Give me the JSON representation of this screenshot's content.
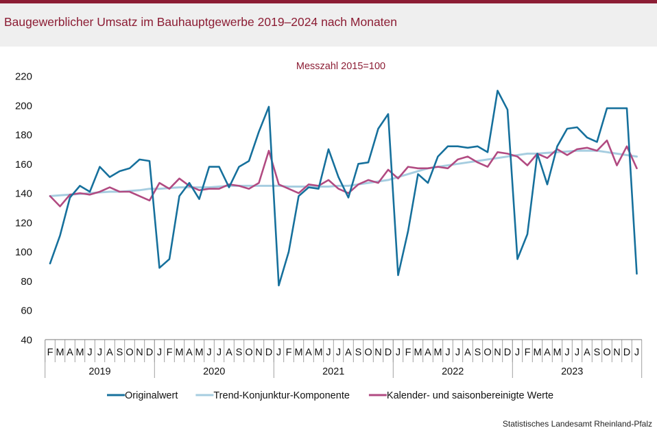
{
  "title": "Baugewerblicher Umsatz im Bauhauptgewerbe 2019–2024 nach Monaten",
  "source": "Statistisches Landesamt Rheinland-Pfalz",
  "colors": {
    "accent": "#8c1d34",
    "original": "#16709c",
    "trend": "#a6cde0",
    "seasonal": "#b14a81"
  },
  "chart_data": {
    "type": "line",
    "subtitle": "Messzahl 2015=100",
    "ylim": [
      40,
      220
    ],
    "yticks": [
      40,
      60,
      80,
      100,
      120,
      140,
      160,
      180,
      200,
      220
    ],
    "grid": false,
    "legend_position": "bottom",
    "x": [
      "F",
      "M",
      "A",
      "M",
      "J",
      "J",
      "A",
      "S",
      "O",
      "N",
      "D",
      "J",
      "F",
      "M",
      "A",
      "M",
      "J",
      "J",
      "A",
      "S",
      "O",
      "N",
      "D",
      "J",
      "F",
      "M",
      "A",
      "M",
      "J",
      "J",
      "A",
      "S",
      "O",
      "N",
      "D",
      "J",
      "F",
      "M",
      "A",
      "M",
      "J",
      "J",
      "A",
      "S",
      "O",
      "N",
      "D",
      "J",
      "F",
      "M",
      "A",
      "M",
      "J",
      "J",
      "A",
      "S",
      "O",
      "N",
      "D",
      "J"
    ],
    "years": [
      {
        "label": "2019",
        "start": 0,
        "end": 11
      },
      {
        "label": "2020",
        "start": 11,
        "end": 23
      },
      {
        "label": "2021",
        "start": 23,
        "end": 35
      },
      {
        "label": "2022",
        "start": 35,
        "end": 47
      },
      {
        "label": "2023",
        "start": 47,
        "end": 59
      }
    ],
    "series": [
      {
        "name": "Originalwert",
        "color": "#16709c",
        "values": [
          92,
          111,
          137,
          145,
          141,
          158,
          151,
          155,
          157,
          163,
          162,
          89,
          95,
          138,
          147,
          136,
          158,
          158,
          144,
          158,
          162,
          182,
          199,
          77,
          100,
          138,
          144,
          143,
          170,
          151,
          137,
          160,
          161,
          184,
          194,
          84,
          114,
          153,
          147,
          165,
          172,
          172,
          171,
          172,
          168,
          210,
          197,
          95,
          112,
          167,
          146,
          172,
          184,
          185,
          178,
          175,
          198,
          198,
          198,
          85
        ]
      },
      {
        "name": "Trend-Konjunktur-Komponente",
        "color": "#a6cde0",
        "values": [
          138,
          138.5,
          139,
          139.5,
          140,
          140.5,
          141,
          141,
          141.5,
          142,
          143,
          143,
          143.5,
          144,
          144,
          144,
          144,
          144.5,
          145,
          145,
          145,
          145,
          145,
          145,
          144.5,
          144.5,
          144.5,
          144.5,
          144.5,
          145,
          145,
          146,
          147,
          148,
          149,
          151,
          153,
          155,
          157,
          158,
          159,
          160,
          161,
          162,
          163,
          164,
          165,
          166,
          167,
          167,
          167.5,
          168,
          168.5,
          169,
          169,
          169,
          168,
          167,
          166,
          165
        ]
      },
      {
        "name": "Kalender- und saisonbereinigte Werte",
        "color": "#b14a81",
        "values": [
          138,
          131,
          139,
          140,
          139,
          141,
          144,
          141,
          141,
          138,
          135,
          147,
          143,
          150,
          145,
          142,
          143,
          143,
          146,
          145,
          143,
          147,
          169,
          146,
          143,
          140,
          146,
          145,
          149,
          143,
          140,
          146,
          149,
          147,
          156,
          150,
          158,
          157,
          157,
          158,
          157,
          163,
          165,
          161,
          158,
          168,
          167,
          165,
          159,
          167,
          164,
          170,
          166,
          170,
          171,
          169,
          176,
          159,
          172,
          157
        ]
      }
    ]
  }
}
